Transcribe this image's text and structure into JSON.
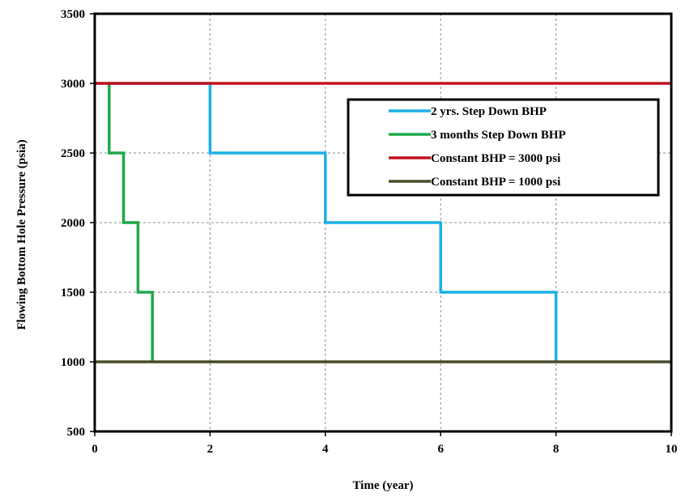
{
  "chart_data": {
    "type": "line",
    "title": "",
    "xlabel": "Time (year)",
    "ylabel": "Flowing Bottom Hole Pressure (psia)",
    "xlim": [
      0,
      10
    ],
    "ylim": [
      500,
      3500
    ],
    "xticks": [
      0,
      2,
      4,
      6,
      8,
      10
    ],
    "yticks": [
      500,
      1000,
      1500,
      2000,
      2500,
      3000,
      3500
    ],
    "grid": true,
    "legend_position": "top-right",
    "series": [
      {
        "name": "2 yrs. Step Down BHP",
        "color": "#1cb0e6",
        "x": [
          0,
          2,
          2,
          4,
          4,
          6,
          6,
          8,
          8
        ],
        "y": [
          3000,
          3000,
          2500,
          2500,
          2000,
          2000,
          1500,
          1500,
          1000
        ]
      },
      {
        "name": "3 months Step Down BHP",
        "color": "#1fa84b",
        "x": [
          0.25,
          0.25,
          0.5,
          0.5,
          0.75,
          0.75,
          1.0,
          1.0
        ],
        "y": [
          3000,
          2500,
          2500,
          2000,
          2000,
          1500,
          1500,
          1000
        ]
      },
      {
        "name": "Constant BHP = 3000 psi",
        "color": "#c0111f",
        "x": [
          0,
          10
        ],
        "y": [
          3000,
          3000
        ]
      },
      {
        "name": "Constant BHP = 1000 psi",
        "color": "#4a4a2a",
        "x": [
          0,
          10
        ],
        "y": [
          1000,
          1000
        ]
      }
    ]
  }
}
